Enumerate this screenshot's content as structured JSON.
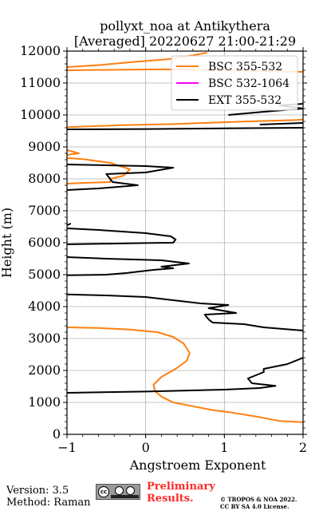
{
  "title": {
    "line1": "pollyxt_noa at Antikythera",
    "line2": "[Averaged] 20220627 21:00-21:29"
  },
  "footer": {
    "version": "Version: 3.5",
    "method": "Method: Raman",
    "preliminary_line1": "Preliminary",
    "preliminary_line2": "Results.",
    "copyright_line1": "© TROPOS & NOA 2022.",
    "copyright_line2": "CC BY SA 4.0 License.",
    "license_icon": "cc-by-sa-icon"
  },
  "chart_data": {
    "type": "line",
    "xlabel": "Angstroem Exponent",
    "ylabel": "Height (m)",
    "xlim": [
      -1,
      2
    ],
    "ylim": [
      0,
      12000
    ],
    "xticks": [
      -1,
      0,
      1,
      2
    ],
    "xtick_labels": [
      "−1",
      "0",
      "1",
      "2"
    ],
    "yticks": [
      0,
      1000,
      2000,
      3000,
      4000,
      5000,
      6000,
      7000,
      8000,
      9000,
      10000,
      11000,
      12000
    ],
    "grid": true,
    "legend_position": "top-right",
    "series": [
      {
        "name": "BSC 355-532",
        "color": "#ff7f0e",
        "points": [
          [
            2.0,
            380
          ],
          [
            1.7,
            420
          ],
          [
            1.4,
            560
          ],
          [
            1.1,
            680
          ],
          [
            0.85,
            760
          ],
          [
            0.6,
            880
          ],
          [
            0.35,
            1000
          ],
          [
            0.2,
            1180
          ],
          [
            0.12,
            1350
          ],
          [
            0.1,
            1550
          ],
          [
            0.2,
            1800
          ],
          [
            0.38,
            2050
          ],
          [
            0.52,
            2300
          ],
          [
            0.56,
            2550
          ],
          [
            0.48,
            2850
          ],
          [
            0.35,
            3050
          ],
          [
            0.15,
            3200
          ],
          [
            -0.2,
            3280
          ],
          [
            -0.6,
            3330
          ],
          [
            -1.0,
            3350
          ],
          [
            null,
            null
          ],
          [
            -1.0,
            7850
          ],
          [
            -0.7,
            7880
          ],
          [
            -0.45,
            7900
          ],
          [
            -0.45,
            8000
          ],
          [
            -0.28,
            8100
          ],
          [
            -0.2,
            8300
          ],
          [
            -0.45,
            8500
          ],
          [
            -0.8,
            8620
          ],
          [
            -1.0,
            8650
          ],
          [
            null,
            null
          ],
          [
            -1.0,
            8750
          ],
          [
            -0.85,
            8800
          ],
          [
            -1.0,
            8900
          ],
          [
            null,
            null
          ],
          [
            -1.0,
            9620
          ],
          [
            -0.3,
            9680
          ],
          [
            0.4,
            9720
          ],
          [
            1.2,
            9790
          ],
          [
            1.9,
            9840
          ],
          [
            2.0,
            9860
          ],
          [
            null,
            null
          ],
          [
            -1.0,
            11400
          ],
          [
            0.2,
            11430
          ],
          [
            1.0,
            11400
          ],
          [
            2.0,
            11350
          ],
          [
            null,
            null
          ],
          [
            -1.0,
            11500
          ],
          [
            -0.6,
            11560
          ],
          [
            -0.2,
            11650
          ],
          [
            0.3,
            11750
          ],
          [
            0.6,
            11870
          ],
          [
            0.78,
            11950
          ]
        ]
      },
      {
        "name": "BSC 532-1064",
        "color": "#ff00ff",
        "points": []
      },
      {
        "name": "EXT 355-532",
        "color": "#000000",
        "points": [
          [
            -1.0,
            1300
          ],
          [
            0.0,
            1340
          ],
          [
            1.0,
            1400
          ],
          [
            1.45,
            1450
          ],
          [
            1.65,
            1520
          ],
          [
            1.35,
            1600
          ],
          [
            1.3,
            1750
          ],
          [
            1.5,
            1950
          ],
          [
            1.5,
            2050
          ],
          [
            1.8,
            2200
          ],
          [
            2.0,
            2400
          ],
          [
            null,
            null
          ],
          [
            2.0,
            3250
          ],
          [
            1.5,
            3350
          ],
          [
            1.25,
            3450
          ],
          [
            0.85,
            3500
          ],
          [
            0.8,
            3600
          ],
          [
            0.75,
            3750
          ],
          [
            1.15,
            3800
          ],
          [
            0.8,
            3950
          ],
          [
            1.05,
            4050
          ],
          [
            0.7,
            4100
          ],
          [
            0.35,
            4200
          ],
          [
            0.0,
            4300
          ],
          [
            -0.5,
            4350
          ],
          [
            -1.0,
            4380
          ],
          [
            null,
            null
          ],
          [
            -1.0,
            4980
          ],
          [
            -0.5,
            5000
          ],
          [
            -0.25,
            5050
          ],
          [
            0.1,
            5150
          ],
          [
            0.35,
            5200
          ],
          [
            0.2,
            5250
          ],
          [
            0.55,
            5350
          ],
          [
            0.2,
            5450
          ],
          [
            -0.5,
            5500
          ],
          [
            -1.0,
            5550
          ],
          [
            null,
            null
          ],
          [
            -1.0,
            5950
          ],
          [
            -0.5,
            5970
          ],
          [
            0.0,
            5990
          ],
          [
            0.35,
            6000
          ],
          [
            0.38,
            6100
          ],
          [
            0.32,
            6200
          ],
          [
            0.0,
            6300
          ],
          [
            -0.6,
            6400
          ],
          [
            -1.0,
            6450
          ],
          [
            null,
            null
          ],
          [
            -1.0,
            6550
          ],
          [
            -0.95,
            6600
          ],
          [
            null,
            null
          ],
          [
            -1.0,
            7650
          ],
          [
            -0.6,
            7700
          ],
          [
            -0.1,
            7800
          ],
          [
            -0.42,
            7900
          ],
          [
            -0.5,
            8150
          ],
          [
            0.0,
            8200
          ],
          [
            0.35,
            8350
          ],
          [
            0.0,
            8400
          ],
          [
            -1.0,
            8450
          ],
          [
            null,
            null
          ],
          [
            -1.0,
            9550
          ],
          [
            0.0,
            9560
          ],
          [
            1.0,
            9580
          ],
          [
            2.0,
            9600
          ],
          [
            null,
            null
          ],
          [
            1.45,
            9700
          ],
          [
            2.0,
            9750
          ],
          [
            null,
            null
          ],
          [
            1.05,
            10000
          ],
          [
            1.5,
            10100
          ],
          [
            2.0,
            10200
          ],
          [
            1.7,
            10300
          ],
          [
            2.0,
            10350
          ]
        ]
      }
    ]
  }
}
